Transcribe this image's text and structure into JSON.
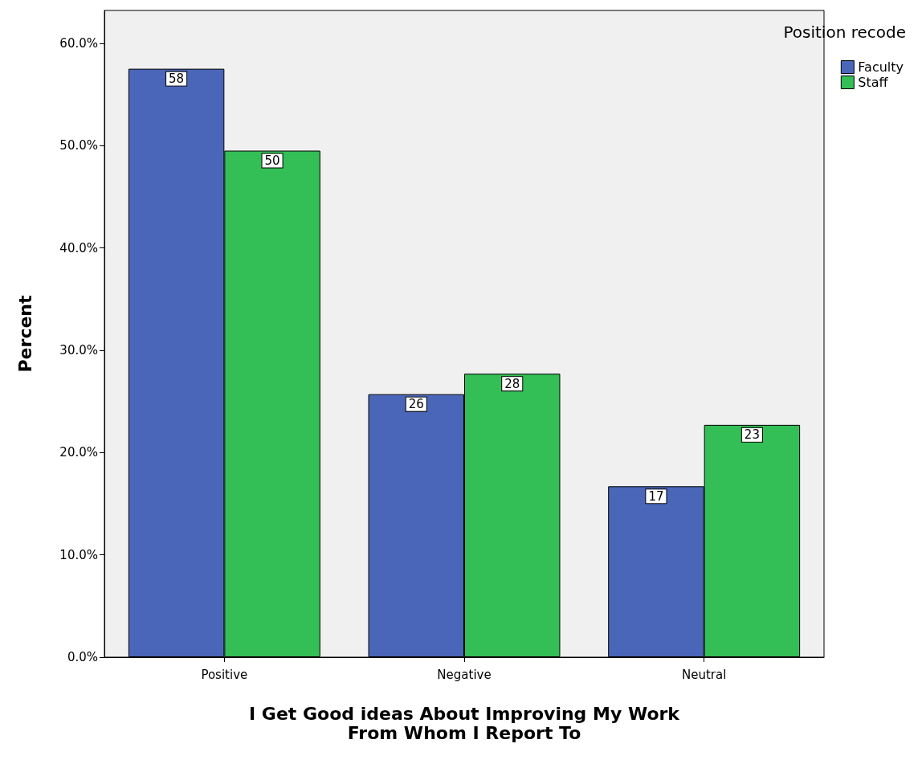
{
  "chart_data": {
    "type": "bar",
    "xlabel": "I Get Good ideas About Improving My Work\nFrom Whom I Report To",
    "ylabel": "Percent",
    "legend_title": "Position recode",
    "legend": "top right",
    "grid": false,
    "categories": [
      "Positive",
      "Negative",
      "Neutral"
    ],
    "series": [
      {
        "name": "Faculty",
        "color": "#4a66b8",
        "values": [
          57.5,
          25.7,
          16.7
        ],
        "value_labels": [
          "58",
          "26",
          "17"
        ]
      },
      {
        "name": "Staff",
        "color": "#33bf55",
        "values": [
          49.5,
          27.7,
          22.7
        ],
        "value_labels": [
          "50",
          "28",
          "23"
        ]
      }
    ],
    "ylim": [
      0,
      63.2
    ],
    "yticks": [
      {
        "value": 0,
        "label": "0.0%"
      },
      {
        "value": 10,
        "label": "10.0%"
      },
      {
        "value": 20,
        "label": "20.0%"
      },
      {
        "value": 30,
        "label": "30.0%"
      },
      {
        "value": 40,
        "label": "40.0%"
      },
      {
        "value": 50,
        "label": "50.0%"
      },
      {
        "value": 60,
        "label": "60.0%"
      }
    ]
  }
}
